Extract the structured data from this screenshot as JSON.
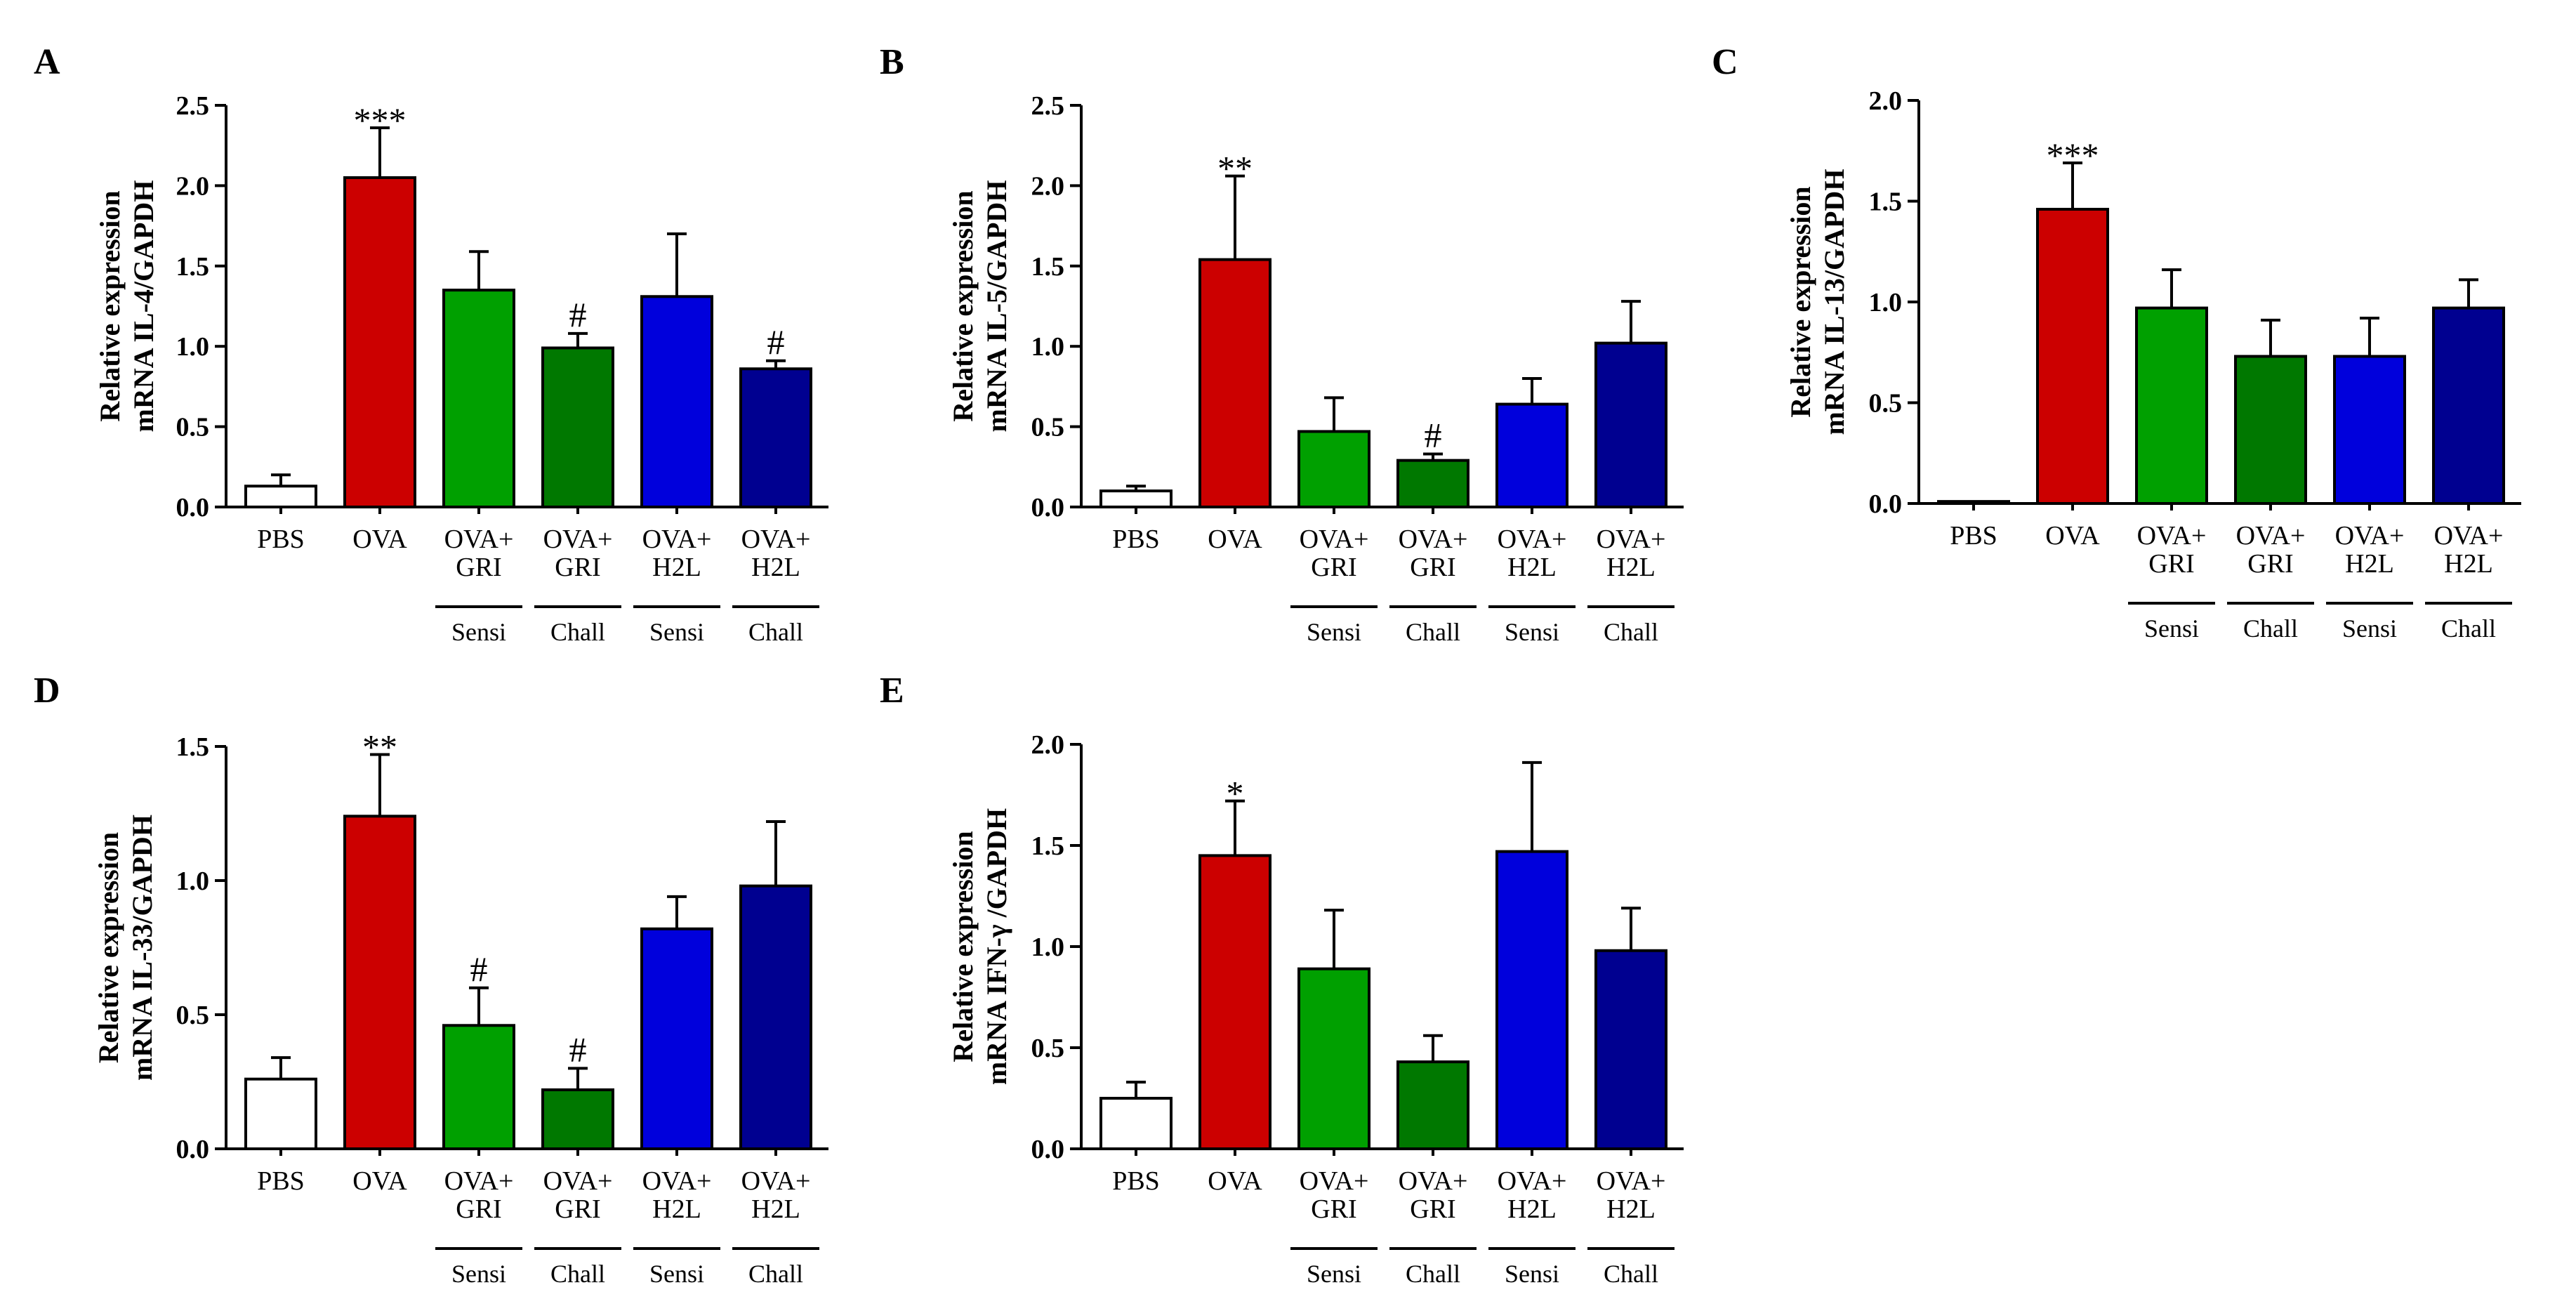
{
  "chart_data": [
    {
      "panel": "A",
      "type": "bar",
      "ylabel_lines": [
        "Relative expression",
        "mRNA IL-4/GAPDH"
      ],
      "ylim": [
        0,
        2.5
      ],
      "yticks": [
        "0.0",
        "0.5",
        "1.0",
        "1.5",
        "2.0",
        "2.5"
      ],
      "categories": [
        [
          "PBS"
        ],
        [
          "OVA"
        ],
        [
          "OVA+",
          "GRI"
        ],
        [
          "OVA+",
          "GRI"
        ],
        [
          "OVA+",
          "H2L"
        ],
        [
          "OVA+",
          "H2L"
        ]
      ],
      "values": [
        0.13,
        2.05,
        1.35,
        0.99,
        1.31,
        0.86
      ],
      "errors": [
        0.07,
        0.31,
        0.24,
        0.09,
        0.39,
        0.05
      ],
      "significance": [
        "",
        "***",
        "",
        "#",
        "",
        "#"
      ],
      "groups": [
        "Sensi",
        "Chall",
        "Sensi",
        "Chall"
      ],
      "colors": [
        "#ffffff",
        "#cc0000",
        "#00a000",
        "#007800",
        "#0000dc",
        "#000090"
      ]
    },
    {
      "panel": "B",
      "type": "bar",
      "ylabel_lines": [
        "Relative expression",
        "mRNA IL-5/GAPDH"
      ],
      "ylim": [
        0,
        2.5
      ],
      "yticks": [
        "0.0",
        "0.5",
        "1.0",
        "1.5",
        "2.0",
        "2.5"
      ],
      "categories": [
        [
          "PBS"
        ],
        [
          "OVA"
        ],
        [
          "OVA+",
          "GRI"
        ],
        [
          "OVA+",
          "GRI"
        ],
        [
          "OVA+",
          "H2L"
        ],
        [
          "OVA+",
          "H2L"
        ]
      ],
      "values": [
        0.1,
        1.54,
        0.47,
        0.29,
        0.64,
        1.02
      ],
      "errors": [
        0.03,
        0.52,
        0.21,
        0.04,
        0.16,
        0.26
      ],
      "significance": [
        "",
        "**",
        "",
        "#",
        "",
        ""
      ],
      "groups": [
        "Sensi",
        "Chall",
        "Sensi",
        "Chall"
      ],
      "colors": [
        "#ffffff",
        "#cc0000",
        "#00a000",
        "#007800",
        "#0000dc",
        "#000090"
      ]
    },
    {
      "panel": "C",
      "type": "bar",
      "ylabel_lines": [
        "Relative expression",
        "mRNA IL-13/GAPDH"
      ],
      "ylim": [
        0,
        2.0
      ],
      "yticks": [
        "0.0",
        "0.5",
        "1.0",
        "1.5",
        "2.0"
      ],
      "categories": [
        [
          "PBS"
        ],
        [
          "OVA"
        ],
        [
          "OVA+",
          "GRI"
        ],
        [
          "OVA+",
          "GRI"
        ],
        [
          "OVA+",
          "H2L"
        ],
        [
          "OVA+",
          "H2L"
        ]
      ],
      "values": [
        0.01,
        1.46,
        0.97,
        0.73,
        0.73,
        0.97
      ],
      "errors": [
        0.0,
        0.23,
        0.19,
        0.18,
        0.19,
        0.14
      ],
      "significance": [
        "",
        "***",
        "",
        "",
        "",
        ""
      ],
      "groups": [
        "Sensi",
        "Chall",
        "Sensi",
        "Chall"
      ],
      "colors": [
        "#ffffff",
        "#cc0000",
        "#00a000",
        "#007800",
        "#0000dc",
        "#000090"
      ]
    },
    {
      "panel": "D",
      "type": "bar",
      "ylabel_lines": [
        "Relative expression",
        "mRNA IL-33/GAPDH"
      ],
      "ylim": [
        0,
        1.5
      ],
      "yticks": [
        "0.0",
        "0.5",
        "1.0",
        "1.5"
      ],
      "categories": [
        [
          "PBS"
        ],
        [
          "OVA"
        ],
        [
          "OVA+",
          "GRI"
        ],
        [
          "OVA+",
          "GRI"
        ],
        [
          "OVA+",
          "H2L"
        ],
        [
          "OVA+",
          "H2L"
        ]
      ],
      "values": [
        0.26,
        1.24,
        0.46,
        0.22,
        0.82,
        0.98
      ],
      "errors": [
        0.08,
        0.23,
        0.14,
        0.08,
        0.12,
        0.24
      ],
      "significance": [
        "",
        "**",
        "#",
        "#",
        "",
        ""
      ],
      "groups": [
        "Sensi",
        "Chall",
        "Sensi",
        "Chall"
      ],
      "colors": [
        "#ffffff",
        "#cc0000",
        "#00a000",
        "#007800",
        "#0000dc",
        "#000090"
      ]
    },
    {
      "panel": "E",
      "type": "bar",
      "ylabel_lines": [
        "Relative expression",
        "mRNA IFN-γ /GAPDH"
      ],
      "ylim": [
        0,
        2.0
      ],
      "yticks": [
        "0.0",
        "0.5",
        "1.0",
        "1.5",
        "2.0"
      ],
      "categories": [
        [
          "PBS"
        ],
        [
          "OVA"
        ],
        [
          "OVA+",
          "GRI"
        ],
        [
          "OVA+",
          "GRI"
        ],
        [
          "OVA+",
          "H2L"
        ],
        [
          "OVA+",
          "H2L"
        ]
      ],
      "values": [
        0.25,
        1.45,
        0.89,
        0.43,
        1.47,
        0.98
      ],
      "errors": [
        0.08,
        0.27,
        0.29,
        0.13,
        0.44,
        0.21
      ],
      "significance": [
        "",
        "*",
        "",
        "",
        "",
        ""
      ],
      "groups": [
        "Sensi",
        "Chall",
        "Sensi",
        "Chall"
      ],
      "colors": [
        "#ffffff",
        "#cc0000",
        "#00a000",
        "#007800",
        "#0000dc",
        "#000090"
      ]
    }
  ]
}
